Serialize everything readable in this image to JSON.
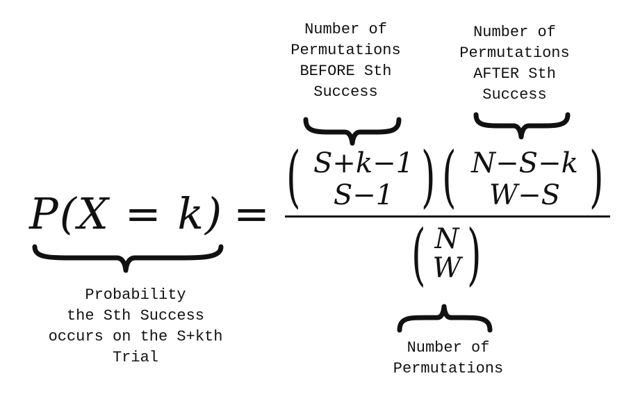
{
  "formula": {
    "lhs": "P(X = k)",
    "equals": "=",
    "binom1_top": "S+k−1",
    "binom1_bottom": "S−1",
    "binom2_top": "N−S−k",
    "binom2_bottom": "W−S",
    "denom_top": "N",
    "denom_bottom": "W"
  },
  "annotations": {
    "before": "Number of\nPermutations\nBEFORE Sth\nSuccess",
    "after": "Number of\nPermutations\nAFTER Sth\nSuccess",
    "probability": "Probability\nthe Sth Success\noccurs on the S+kth\nTrial",
    "total": "Number of\nPermutations"
  }
}
